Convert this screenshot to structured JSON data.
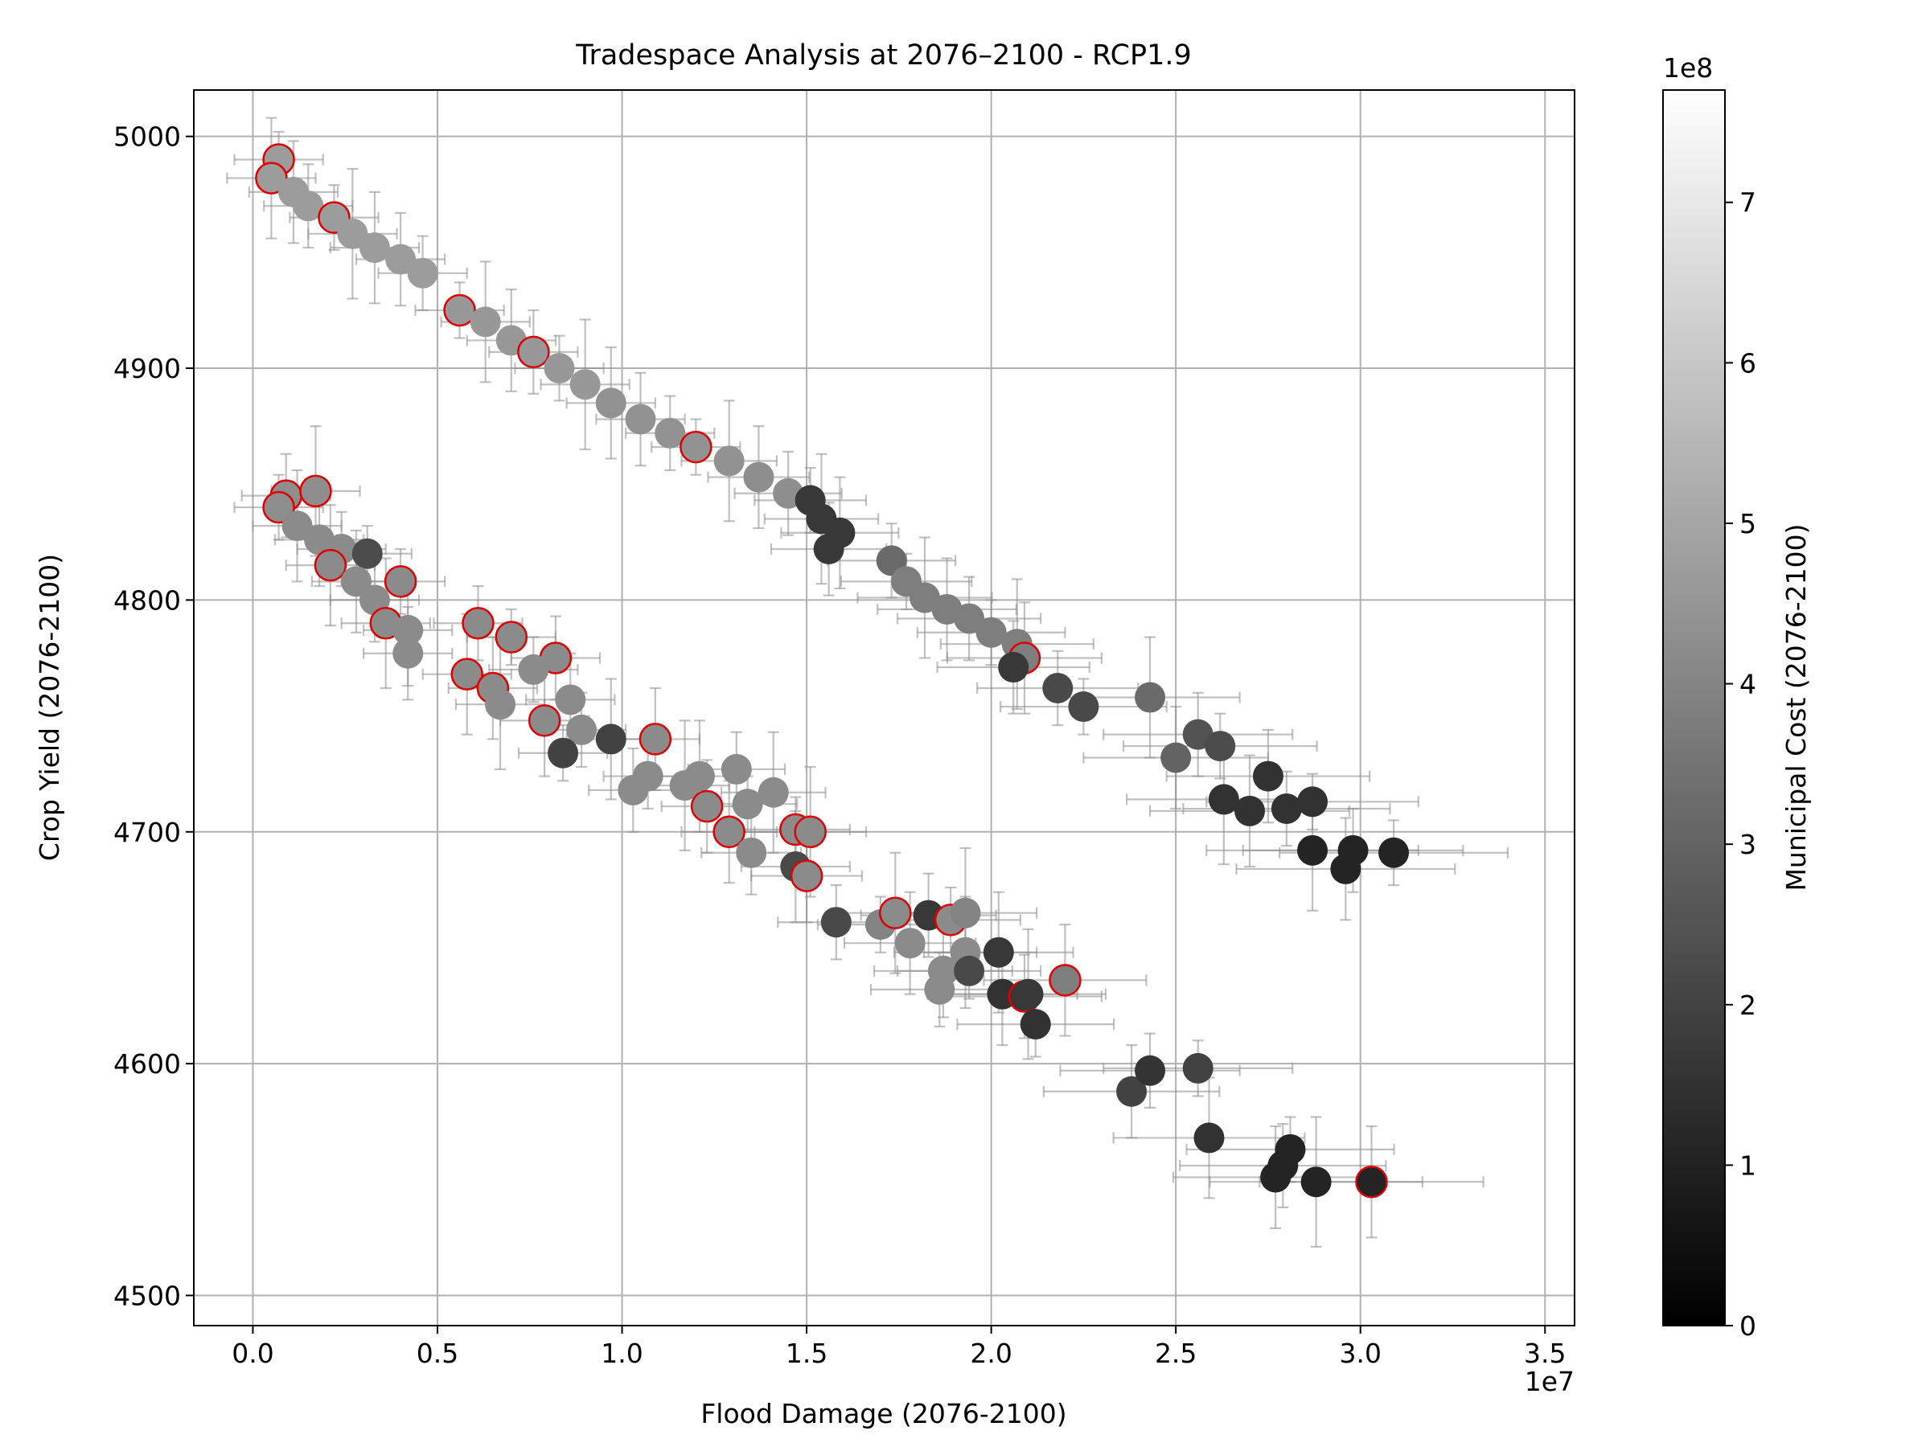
{
  "chart_data": {
    "type": "scatter",
    "title": "Tradespace Analysis at 2076–2100 - RCP1.9",
    "xlabel": "Flood Damage (2076-2100)",
    "ylabel": "Crop Yield (2076-2100)",
    "x_offset_text": "1e7",
    "x_scale": 10000000,
    "xlim": [
      -1600000,
      35800000
    ],
    "ylim": [
      4487,
      5020
    ],
    "x_ticks": [
      0,
      5000000,
      10000000,
      15000000,
      20000000,
      25000000,
      30000000,
      35000000
    ],
    "x_tick_labels": [
      "0.0",
      "0.5",
      "1.0",
      "1.5",
      "2.0",
      "2.5",
      "3.0",
      "3.5"
    ],
    "y_ticks": [
      4500,
      4600,
      4700,
      4800,
      4900,
      5000
    ],
    "y_tick_labels": [
      "4500",
      "4600",
      "4700",
      "4800",
      "4900",
      "5000"
    ],
    "grid": true,
    "colormap": "gray",
    "highlight_color": "#e00000",
    "errorbar_color": "#8c8c8c",
    "colorbar": {
      "label": "Municipal Cost (2076-2100)",
      "offset_text": "1e8",
      "scale": 100000000,
      "range": [
        0,
        770000000
      ],
      "ticks": [
        0,
        100000000,
        200000000,
        300000000,
        400000000,
        500000000,
        600000000,
        700000000
      ],
      "tick_labels": [
        "0",
        "1",
        "2",
        "3",
        "4",
        "5",
        "6",
        "7"
      ]
    },
    "series": [
      {
        "points": [
          {
            "x": 700000,
            "y": 4990,
            "c": 470000000,
            "hl": true
          },
          {
            "x": 500000,
            "y": 4982,
            "c": 470000000,
            "hl": true
          },
          {
            "x": 1100000,
            "y": 4976,
            "c": 470000000
          },
          {
            "x": 1500000,
            "y": 4970,
            "c": 470000000
          },
          {
            "x": 2200000,
            "y": 4965,
            "c": 470000000,
            "hl": true
          },
          {
            "x": 2700000,
            "y": 4958,
            "c": 470000000
          },
          {
            "x": 3300000,
            "y": 4952,
            "c": 470000000
          },
          {
            "x": 4000000,
            "y": 4947,
            "c": 470000000
          },
          {
            "x": 4600000,
            "y": 4941,
            "c": 470000000
          },
          {
            "x": 5600000,
            "y": 4925,
            "c": 460000000,
            "hl": true
          },
          {
            "x": 6300000,
            "y": 4920,
            "c": 460000000
          },
          {
            "x": 7000000,
            "y": 4912,
            "c": 460000000
          },
          {
            "x": 7600000,
            "y": 4907,
            "c": 460000000,
            "hl": true
          },
          {
            "x": 8300000,
            "y": 4900,
            "c": 460000000
          },
          {
            "x": 9000000,
            "y": 4893,
            "c": 460000000
          },
          {
            "x": 9700000,
            "y": 4885,
            "c": 440000000
          },
          {
            "x": 10500000,
            "y": 4878,
            "c": 440000000
          },
          {
            "x": 11300000,
            "y": 4872,
            "c": 440000000
          },
          {
            "x": 12000000,
            "y": 4866,
            "c": 440000000,
            "hl": true
          },
          {
            "x": 12900000,
            "y": 4860,
            "c": 440000000
          },
          {
            "x": 13700000,
            "y": 4853,
            "c": 430000000
          },
          {
            "x": 14500000,
            "y": 4846,
            "c": 430000000
          },
          {
            "x": 15100000,
            "y": 4843,
            "c": 170000000
          },
          {
            "x": 15400000,
            "y": 4835,
            "c": 170000000
          },
          {
            "x": 15900000,
            "y": 4829,
            "c": 170000000
          },
          {
            "x": 15600000,
            "y": 4822,
            "c": 170000000
          },
          {
            "x": 17300000,
            "y": 4817,
            "c": 320000000
          },
          {
            "x": 17700000,
            "y": 4808,
            "c": 380000000
          },
          {
            "x": 18200000,
            "y": 4801,
            "c": 380000000
          },
          {
            "x": 18800000,
            "y": 4796,
            "c": 380000000
          },
          {
            "x": 19400000,
            "y": 4792,
            "c": 380000000
          },
          {
            "x": 20000000,
            "y": 4786,
            "c": 380000000
          },
          {
            "x": 20700000,
            "y": 4781,
            "c": 380000000
          },
          {
            "x": 20900000,
            "y": 4775,
            "c": 380000000,
            "hl": true
          },
          {
            "x": 20600000,
            "y": 4771,
            "c": 170000000
          },
          {
            "x": 21800000,
            "y": 4762,
            "c": 220000000
          },
          {
            "x": 22500000,
            "y": 4754,
            "c": 220000000
          },
          {
            "x": 24300000,
            "y": 4758,
            "c": 320000000
          },
          {
            "x": 25000000,
            "y": 4732,
            "c": 300000000
          },
          {
            "x": 25600000,
            "y": 4742,
            "c": 250000000
          },
          {
            "x": 26200000,
            "y": 4737,
            "c": 230000000
          },
          {
            "x": 26300000,
            "y": 4714,
            "c": 150000000
          },
          {
            "x": 27000000,
            "y": 4709,
            "c": 150000000
          },
          {
            "x": 27500000,
            "y": 4724,
            "c": 150000000
          },
          {
            "x": 28000000,
            "y": 4710,
            "c": 150000000
          },
          {
            "x": 28700000,
            "y": 4713,
            "c": 150000000
          },
          {
            "x": 28700000,
            "y": 4692,
            "c": 110000000
          },
          {
            "x": 29600000,
            "y": 4684,
            "c": 110000000
          },
          {
            "x": 29800000,
            "y": 4692,
            "c": 110000000
          },
          {
            "x": 30900000,
            "y": 4691,
            "c": 110000000
          }
        ]
      },
      {
        "points": [
          {
            "x": 900000,
            "y": 4845,
            "c": 430000000,
            "hl": true
          },
          {
            "x": 700000,
            "y": 4840,
            "c": 430000000,
            "hl": true
          },
          {
            "x": 1700000,
            "y": 4847,
            "c": 430000000,
            "hl": true
          },
          {
            "x": 1200000,
            "y": 4832,
            "c": 420000000
          },
          {
            "x": 1800000,
            "y": 4826,
            "c": 420000000
          },
          {
            "x": 2400000,
            "y": 4822,
            "c": 420000000
          },
          {
            "x": 3100000,
            "y": 4820,
            "c": 230000000
          },
          {
            "x": 2100000,
            "y": 4815,
            "c": 420000000,
            "hl": true
          },
          {
            "x": 2800000,
            "y": 4808,
            "c": 420000000
          },
          {
            "x": 3300000,
            "y": 4800,
            "c": 420000000
          },
          {
            "x": 4000000,
            "y": 4808,
            "c": 420000000,
            "hl": true
          },
          {
            "x": 3600000,
            "y": 4790,
            "c": 420000000,
            "hl": true
          },
          {
            "x": 4200000,
            "y": 4787,
            "c": 420000000
          },
          {
            "x": 4200000,
            "y": 4777,
            "c": 420000000
          },
          {
            "x": 6100000,
            "y": 4790,
            "c": 420000000,
            "hl": true
          },
          {
            "x": 7000000,
            "y": 4784,
            "c": 420000000,
            "hl": true
          },
          {
            "x": 5800000,
            "y": 4768,
            "c": 420000000,
            "hl": true
          },
          {
            "x": 6500000,
            "y": 4762,
            "c": 420000000,
            "hl": true
          },
          {
            "x": 8200000,
            "y": 4775,
            "c": 420000000,
            "hl": true
          },
          {
            "x": 7600000,
            "y": 4770,
            "c": 420000000
          },
          {
            "x": 6700000,
            "y": 4755,
            "c": 420000000
          },
          {
            "x": 7900000,
            "y": 4748,
            "c": 420000000,
            "hl": true
          },
          {
            "x": 8600000,
            "y": 4757,
            "c": 420000000
          },
          {
            "x": 8900000,
            "y": 4744,
            "c": 420000000
          },
          {
            "x": 8400000,
            "y": 4734,
            "c": 200000000
          },
          {
            "x": 9700000,
            "y": 4740,
            "c": 200000000
          },
          {
            "x": 10900000,
            "y": 4740,
            "c": 420000000,
            "hl": true
          },
          {
            "x": 10300000,
            "y": 4718,
            "c": 420000000
          },
          {
            "x": 10700000,
            "y": 4724,
            "c": 420000000
          },
          {
            "x": 11700000,
            "y": 4720,
            "c": 420000000
          },
          {
            "x": 12100000,
            "y": 4724,
            "c": 420000000
          },
          {
            "x": 12300000,
            "y": 4711,
            "c": 420000000,
            "hl": true
          },
          {
            "x": 13100000,
            "y": 4727,
            "c": 420000000
          },
          {
            "x": 13400000,
            "y": 4712,
            "c": 420000000
          },
          {
            "x": 14100000,
            "y": 4717,
            "c": 420000000
          },
          {
            "x": 12900000,
            "y": 4700,
            "c": 420000000,
            "hl": true
          },
          {
            "x": 13500000,
            "y": 4691,
            "c": 420000000
          },
          {
            "x": 14700000,
            "y": 4701,
            "c": 420000000,
            "hl": true
          },
          {
            "x": 15100000,
            "y": 4700,
            "c": 420000000,
            "hl": true
          },
          {
            "x": 14700000,
            "y": 4685,
            "c": 220000000
          },
          {
            "x": 15000000,
            "y": 4681,
            "c": 420000000,
            "hl": true
          },
          {
            "x": 15800000,
            "y": 4661,
            "c": 220000000
          },
          {
            "x": 17000000,
            "y": 4660,
            "c": 400000000
          },
          {
            "x": 17400000,
            "y": 4665,
            "c": 420000000,
            "hl": true
          },
          {
            "x": 17800000,
            "y": 4652,
            "c": 420000000
          },
          {
            "x": 18300000,
            "y": 4664,
            "c": 170000000
          },
          {
            "x": 18900000,
            "y": 4662,
            "c": 420000000,
            "hl": true
          },
          {
            "x": 19300000,
            "y": 4665,
            "c": 400000000
          },
          {
            "x": 19300000,
            "y": 4648,
            "c": 420000000
          },
          {
            "x": 18700000,
            "y": 4640,
            "c": 420000000
          },
          {
            "x": 18600000,
            "y": 4632,
            "c": 420000000
          },
          {
            "x": 19400000,
            "y": 4640,
            "c": 220000000
          },
          {
            "x": 20200000,
            "y": 4648,
            "c": 170000000
          },
          {
            "x": 20300000,
            "y": 4630,
            "c": 150000000
          },
          {
            "x": 20900000,
            "y": 4629,
            "c": 170000000,
            "hl": true
          },
          {
            "x": 21200000,
            "y": 4617,
            "c": 150000000
          },
          {
            "x": 21000000,
            "y": 4630,
            "c": 170000000
          },
          {
            "x": 22000000,
            "y": 4636,
            "c": 380000000,
            "hl": true
          },
          {
            "x": 23800000,
            "y": 4588,
            "c": 200000000
          },
          {
            "x": 24300000,
            "y": 4597,
            "c": 160000000
          },
          {
            "x": 25600000,
            "y": 4598,
            "c": 200000000
          },
          {
            "x": 25900000,
            "y": 4568,
            "c": 150000000
          },
          {
            "x": 27700000,
            "y": 4551,
            "c": 110000000
          },
          {
            "x": 27900000,
            "y": 4556,
            "c": 110000000
          },
          {
            "x": 28100000,
            "y": 4563,
            "c": 110000000
          },
          {
            "x": 28800000,
            "y": 4549,
            "c": 110000000
          },
          {
            "x": 30300000,
            "y": 4549,
            "c": 110000000,
            "hl": true
          }
        ]
      }
    ]
  }
}
